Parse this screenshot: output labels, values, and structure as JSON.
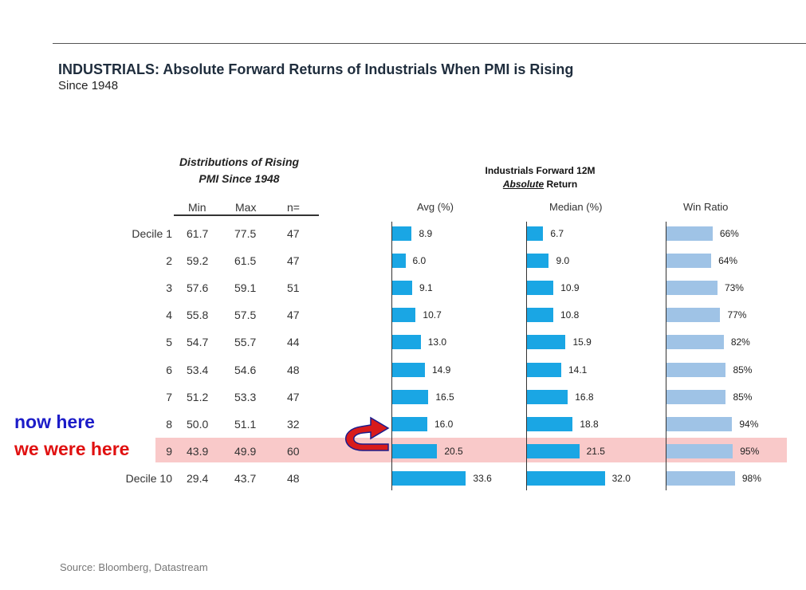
{
  "title": "INDUSTRIALS: Absolute Forward Returns of Industrials When PMI is Rising",
  "subtitle": "Since 1948",
  "distribution_header": {
    "line1": "Distributions of Rising",
    "line2": "PMI Since 1948",
    "columns": [
      "Min",
      "Max",
      "n="
    ]
  },
  "forward_header": {
    "line1": "Industrials Forward 12M",
    "line2_emphasis": "Absolute",
    "line2_rest": " Return"
  },
  "annotations": {
    "now_here": "now here",
    "were_here": "we were here"
  },
  "source": "Source:  Bloomberg, Datastream",
  "colors": {
    "avg_bar": "#1aa6e4",
    "median_bar": "#1aa6e4",
    "win_bar": "#9fc3e6",
    "highlight": "#f9c9c9",
    "now_here_text": "#1c1cc8",
    "were_here_text": "#e01010",
    "arrow": "#d81b1b"
  },
  "chart_data": {
    "type": "bar",
    "categories": [
      "Decile 1",
      "2",
      "3",
      "4",
      "5",
      "6",
      "7",
      "8",
      "9",
      "Decile 10"
    ],
    "table": {
      "min": [
        "61.7",
        "59.2",
        "57.6",
        "55.8",
        "54.7",
        "53.4",
        "51.2",
        "50.0",
        "43.9",
        "29.4"
      ],
      "max": [
        "77.5",
        "61.5",
        "59.1",
        "57.5",
        "55.7",
        "54.6",
        "53.3",
        "51.1",
        "49.9",
        "43.7"
      ],
      "n": [
        "47",
        "47",
        "51",
        "47",
        "44",
        "48",
        "47",
        "32",
        "60",
        "48"
      ]
    },
    "series": [
      {
        "name": "Avg (%)",
        "values": [
          8.9,
          6.0,
          9.1,
          10.7,
          13.0,
          14.9,
          16.5,
          16.0,
          20.5,
          33.6
        ],
        "labels": [
          "8.9",
          "6.0",
          "9.1",
          "10.7",
          "13.0",
          "14.9",
          "16.5",
          "16.0",
          "20.5",
          "33.6"
        ]
      },
      {
        "name": "Median (%)",
        "values": [
          6.7,
          9.0,
          10.9,
          10.8,
          15.9,
          14.1,
          16.8,
          18.8,
          21.5,
          32.0
        ],
        "labels": [
          "6.7",
          "9.0",
          "10.9",
          "10.8",
          "15.9",
          "14.1",
          "16.8",
          "18.8",
          "21.5",
          "32.0"
        ]
      },
      {
        "name": "Win Ratio",
        "values": [
          66,
          64,
          73,
          77,
          82,
          85,
          85,
          94,
          95,
          98
        ],
        "labels": [
          "66%",
          "64%",
          "73%",
          "77%",
          "82%",
          "85%",
          "85%",
          "94%",
          "95%",
          "98%"
        ]
      }
    ],
    "highlighted_category": "9",
    "legend": "none",
    "grid": false
  }
}
